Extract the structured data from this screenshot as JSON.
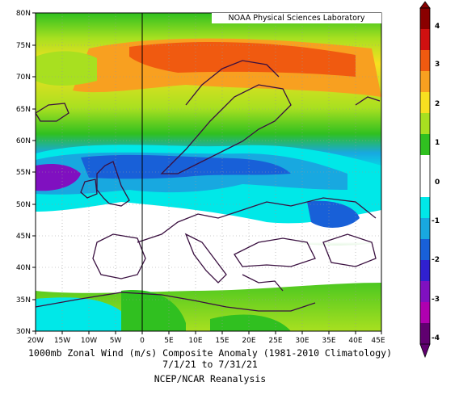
{
  "credit": "NOAA Physical Sciences Laboratory",
  "caption": {
    "line1": "1000mb Zonal Wind (m/s) Composite Anomaly (1981-2010 Climatology)",
    "line2": "7/1/21  to 7/31/21",
    "line3": "NCEP/NCAR Reanalysis"
  },
  "lat_labels": [
    "80N",
    "75N",
    "70N",
    "65N",
    "60N",
    "55N",
    "50N",
    "45N",
    "40N",
    "35N",
    "30N"
  ],
  "lon_labels": [
    "20W",
    "15W",
    "10W",
    "5W",
    "0",
    "5E",
    "10E",
    "15E",
    "20E",
    "25E",
    "30E",
    "35E",
    "40E",
    "45E"
  ],
  "colorbar": {
    "labels": [
      "4",
      "3",
      "2",
      "1",
      "0",
      "-1",
      "-2",
      "-3",
      "-4"
    ],
    "colors": [
      "#8a0000",
      "#d01010",
      "#f05a10",
      "#f8a020",
      "#f8e020",
      "#a8e020",
      "#30c020",
      "#ffffff",
      "#ffffff",
      "#00e8e8",
      "#18a8e0",
      "#1860d8",
      "#3020d0",
      "#8010c0",
      "#b000b0",
      "#600070"
    ]
  },
  "colors": {
    "land_outline": "#3a1040",
    "grid": "#999999"
  }
}
